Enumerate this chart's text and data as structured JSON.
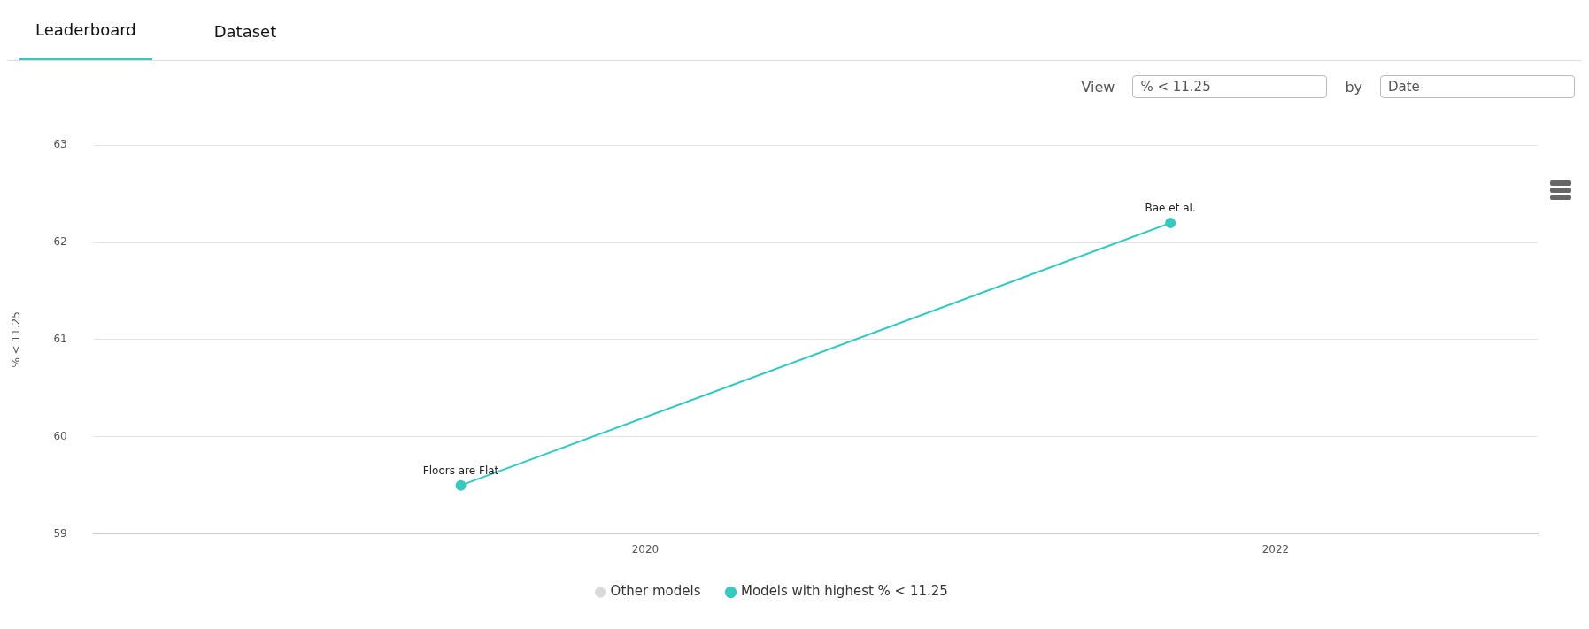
{
  "chart_data": {
    "type": "line",
    "ylabel": "% < 11.25",
    "x": [
      "2019-06",
      "2021-09"
    ],
    "series": [
      {
        "name": "Other models",
        "color": "#d9d9d9",
        "type": "scatter",
        "values": [
          null,
          null
        ]
      },
      {
        "name": "Models with highest % < 11.25",
        "color": "#36c9c0",
        "values": [
          59.5,
          62.2
        ]
      }
    ],
    "xlim": [
      "2018-04",
      "2022-11"
    ],
    "xticks": [
      "2020",
      "2022"
    ],
    "ylim": [
      59,
      63
    ],
    "yticks": [
      59,
      60,
      61,
      62,
      63
    ],
    "grid": "y",
    "legend": "bottom",
    "marker": "circle",
    "annotations": [
      "Leaderboard",
      "Dataset",
      "View",
      "% < 11.25",
      "by",
      "Date",
      {
        "text": "Floors are Flat",
        "x": "2019-06",
        "y": 59.5
      },
      {
        "text": "Bae et al.",
        "x": "2021-09",
        "y": 62.2
      }
    ]
  }
}
